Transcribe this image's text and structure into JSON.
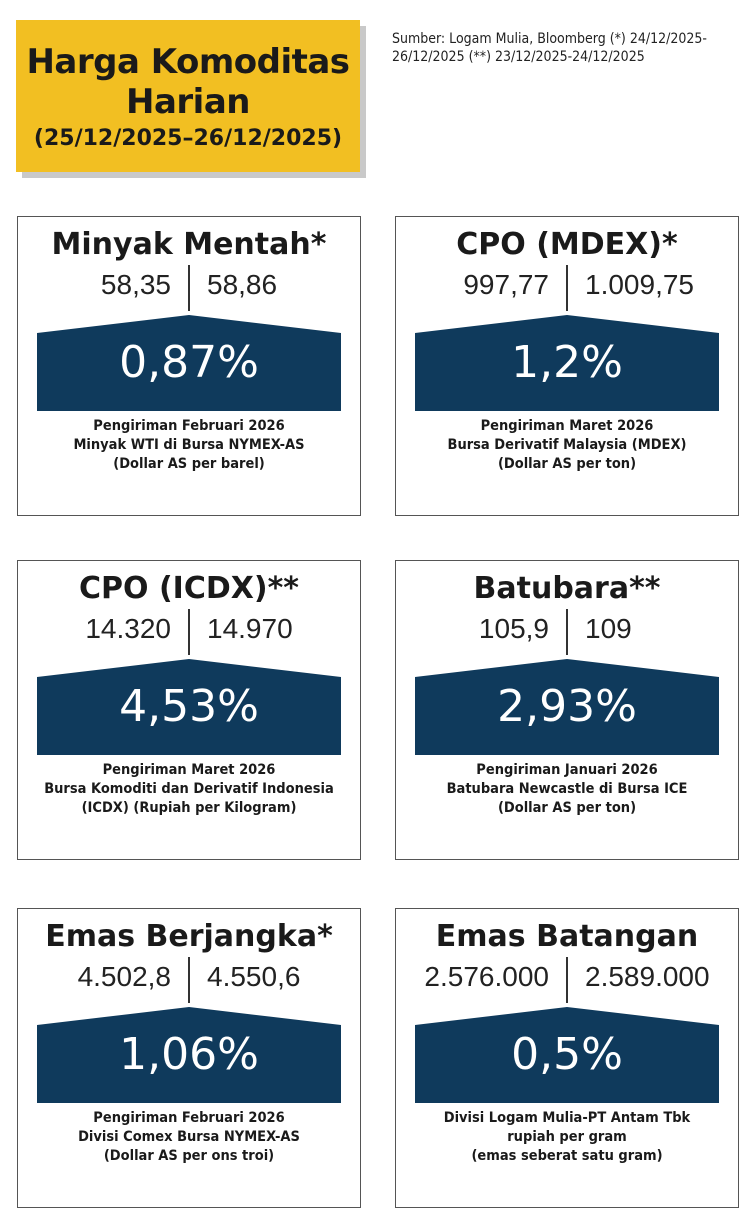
{
  "header": {
    "title": "Harga Komoditas Harian",
    "date_range": "(25/12/2025–26/12/2025)"
  },
  "source_note": "Sumber: Logam Mulia, Bloomberg (*) 24/12/2025-26/12/2025 (**) 23/12/2025-24/12/2025",
  "colors": {
    "header_bg": "#f2bf22",
    "banner": "#0f3a5c"
  },
  "cards": [
    {
      "title": "Minyak Mentah*",
      "prev": "58,35",
      "curr": "58,86",
      "change": "0,87%",
      "desc": [
        "Pengiriman Februari 2026",
        "Minyak WTI di Bursa NYMEX-AS",
        "(Dollar AS per barel)"
      ]
    },
    {
      "title": "CPO (MDEX)*",
      "prev": "997,77",
      "curr": "1.009,75",
      "change": "1,2%",
      "desc": [
        "Pengiriman Maret 2026",
        "Bursa Derivatif Malaysia (MDEX)",
        "(Dollar AS per ton)"
      ]
    },
    {
      "title": "CPO (ICDX)**",
      "prev": "14.320",
      "curr": "14.970",
      "change": "4,53%",
      "desc": [
        "Pengiriman Maret 2026",
        "Bursa Komoditi dan Derivatif Indonesia",
        "(ICDX) (Rupiah per Kilogram)"
      ]
    },
    {
      "title": "Batubara**",
      "prev": "105,9",
      "curr": "109",
      "change": "2,93%",
      "desc": [
        "Pengiriman Januari 2026",
        "Batubara Newcastle di Bursa ICE",
        "(Dollar AS per ton)"
      ]
    },
    {
      "title": "Emas Berjangka*",
      "prev": "4.502,8",
      "curr": "4.550,6",
      "change": "1,06%",
      "desc": [
        "Pengiriman Februari 2026",
        "Divisi Comex Bursa NYMEX-AS",
        "(Dollar AS per ons troi)"
      ]
    },
    {
      "title": "Emas Batangan",
      "prev": "2.576.000",
      "curr": "2.589.000",
      "change": "0,5%",
      "desc": [
        "Divisi Logam Mulia-PT Antam Tbk",
        "rupiah per gram",
        "(emas seberat satu gram)"
      ]
    }
  ]
}
